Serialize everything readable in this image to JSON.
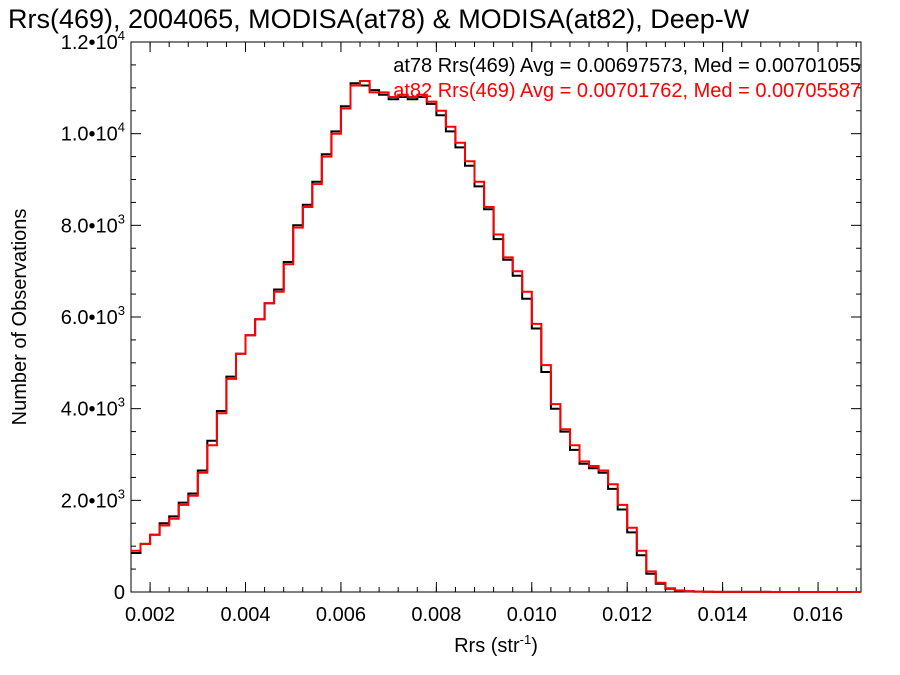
{
  "chart_data": {
    "type": "line",
    "title": "Rrs(469), 2004065, MODISA(at78) & MODISA(at82), Deep-W",
    "xlabel": "Rrs (str",
    "xlabel_sup": "-1",
    "xlabel_end": ")",
    "ylabel": "Number of Observations",
    "xlim": [
      0.0016,
      0.0169
    ],
    "ylim": [
      0,
      12000
    ],
    "x_ticks": [
      {
        "value": 0.002,
        "label": "0.002"
      },
      {
        "value": 0.004,
        "label": "0.004"
      },
      {
        "value": 0.006,
        "label": "0.006"
      },
      {
        "value": 0.008,
        "label": "0.008"
      },
      {
        "value": 0.01,
        "label": "0.010"
      },
      {
        "value": 0.012,
        "label": "0.012"
      },
      {
        "value": 0.014,
        "label": "0.014"
      },
      {
        "value": 0.016,
        "label": "0.016"
      }
    ],
    "y_ticks": [
      {
        "value": 0,
        "label": "0",
        "sup": ""
      },
      {
        "value": 2000,
        "label": "2.0•10",
        "sup": "3"
      },
      {
        "value": 4000,
        "label": "4.0•10",
        "sup": "3"
      },
      {
        "value": 6000,
        "label": "6.0•10",
        "sup": "3"
      },
      {
        "value": 8000,
        "label": "8.0•10",
        "sup": "3"
      },
      {
        "value": 10000,
        "label": "1.0•10",
        "sup": "4"
      },
      {
        "value": 12000,
        "label": "1.2•10",
        "sup": "4"
      }
    ],
    "grid": false,
    "legend": "top-right",
    "legend_entries": [
      {
        "text": "at78 Rrs(469) Avg = 0.00697573, Med = 0.00701055",
        "color": "#000000"
      },
      {
        "text": "at82 Rrs(469) Avg = 0.00701762, Med = 0.00705587",
        "color": "#ff0000"
      }
    ],
    "series": [
      {
        "color": "#000000",
        "step": true,
        "x": [
          0.0016,
          0.0018,
          0.002,
          0.0022,
          0.0024,
          0.0026,
          0.0028,
          0.003,
          0.0032,
          0.0034,
          0.0036,
          0.0038,
          0.004,
          0.0042,
          0.0044,
          0.0046,
          0.0048,
          0.005,
          0.0052,
          0.0054,
          0.0056,
          0.0058,
          0.006,
          0.0062,
          0.0064,
          0.0066,
          0.0068,
          0.007,
          0.0072,
          0.0074,
          0.0076,
          0.0078,
          0.008,
          0.0082,
          0.0084,
          0.0086,
          0.0088,
          0.009,
          0.0092,
          0.0094,
          0.0096,
          0.0098,
          0.01,
          0.0102,
          0.0104,
          0.0106,
          0.0108,
          0.011,
          0.0112,
          0.0114,
          0.0116,
          0.0118,
          0.012,
          0.0122,
          0.0124,
          0.0126,
          0.0128,
          0.013,
          0.0132,
          0.0134,
          0.0136,
          0.0138,
          0.014,
          0.015,
          0.016,
          0.0169
        ],
        "y": [
          850,
          1050,
          1250,
          1500,
          1650,
          1950,
          2150,
          2650,
          3300,
          3950,
          4700,
          5200,
          5600,
          5950,
          6300,
          6600,
          7200,
          8000,
          8450,
          8950,
          9550,
          10050,
          10600,
          11100,
          11050,
          10950,
          10850,
          10750,
          10800,
          10750,
          10800,
          10650,
          10400,
          10050,
          9700,
          9300,
          8850,
          8350,
          7700,
          7250,
          6900,
          6400,
          5750,
          4800,
          4000,
          3500,
          3100,
          2800,
          2700,
          2600,
          2250,
          1800,
          1300,
          800,
          400,
          180,
          70,
          30,
          15,
          8,
          5,
          3,
          2,
          0,
          0,
          0
        ]
      },
      {
        "color": "#ff0000",
        "step": true,
        "x": [
          0.0016,
          0.0018,
          0.002,
          0.0022,
          0.0024,
          0.0026,
          0.0028,
          0.003,
          0.0032,
          0.0034,
          0.0036,
          0.0038,
          0.004,
          0.0042,
          0.0044,
          0.0046,
          0.0048,
          0.005,
          0.0052,
          0.0054,
          0.0056,
          0.0058,
          0.006,
          0.0062,
          0.0064,
          0.0066,
          0.0068,
          0.007,
          0.0072,
          0.0074,
          0.0076,
          0.0078,
          0.008,
          0.0082,
          0.0084,
          0.0086,
          0.0088,
          0.009,
          0.0092,
          0.0094,
          0.0096,
          0.0098,
          0.01,
          0.0102,
          0.0104,
          0.0106,
          0.0108,
          0.011,
          0.0112,
          0.0114,
          0.0116,
          0.0118,
          0.012,
          0.0122,
          0.0124,
          0.0126,
          0.0128,
          0.013,
          0.0132,
          0.0134,
          0.0136,
          0.0138,
          0.014,
          0.015,
          0.016,
          0.0169
        ],
        "y": [
          900,
          1050,
          1250,
          1450,
          1600,
          1900,
          2100,
          2600,
          3200,
          3900,
          4650,
          5200,
          5600,
          5950,
          6300,
          6550,
          7150,
          7950,
          8400,
          8900,
          9500,
          10000,
          10550,
          11050,
          11150,
          10900,
          10900,
          10800,
          10850,
          10800,
          10850,
          10700,
          10500,
          10150,
          9800,
          9400,
          8950,
          8400,
          7800,
          7300,
          7000,
          6550,
          5850,
          4950,
          4100,
          3550,
          3200,
          2850,
          2750,
          2650,
          2350,
          1900,
          1400,
          900,
          450,
          200,
          80,
          35,
          15,
          8,
          5,
          3,
          2,
          0,
          0,
          0
        ]
      }
    ]
  }
}
